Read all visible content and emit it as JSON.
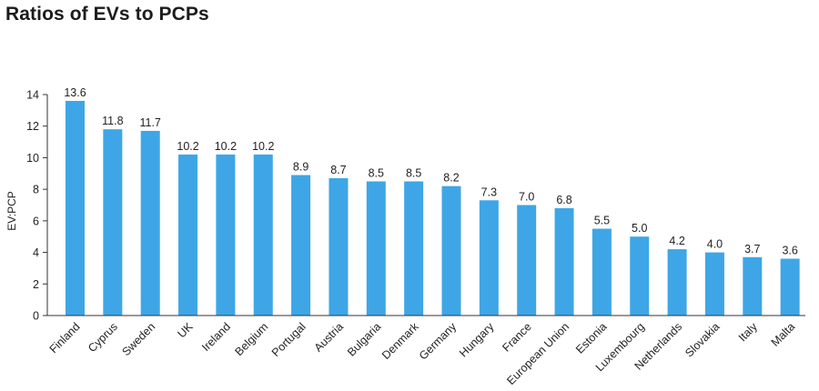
{
  "chart_data": {
    "type": "bar",
    "title": "Ratios of EVs to PCPs",
    "xlabel": "",
    "ylabel": "EV:PCP",
    "ylim": [
      0,
      14
    ],
    "yticks": [
      0,
      2,
      4,
      6,
      8,
      10,
      12,
      14
    ],
    "grid": false,
    "bar_color": "#3ea6e6",
    "categories": [
      "Finland",
      "Cyprus",
      "Sweden",
      "UK",
      "Ireland",
      "Belgium",
      "Portugal",
      "Austria",
      "Bulgaria",
      "Denmark",
      "Germany",
      "Hungary",
      "France",
      "European Union",
      "Estonia",
      "Luxembourg",
      "Netherlands",
      "Slovakia",
      "Italy",
      "Malta"
    ],
    "values": [
      13.6,
      11.8,
      11.7,
      10.2,
      10.2,
      10.2,
      8.9,
      8.7,
      8.5,
      8.5,
      8.2,
      7.3,
      7.0,
      6.8,
      5.5,
      5.0,
      4.2,
      4.0,
      3.7,
      3.6
    ],
    "value_labels": [
      "13.6",
      "11.8",
      "11.7",
      "10.2",
      "10.2",
      "10.2",
      "8.9",
      "8.7",
      "8.5",
      "8.5",
      "8.2",
      "7.3",
      "7.0",
      "6.8",
      "5.5",
      "5.0",
      "4.2",
      "4.0",
      "3.7",
      "3.6"
    ]
  }
}
